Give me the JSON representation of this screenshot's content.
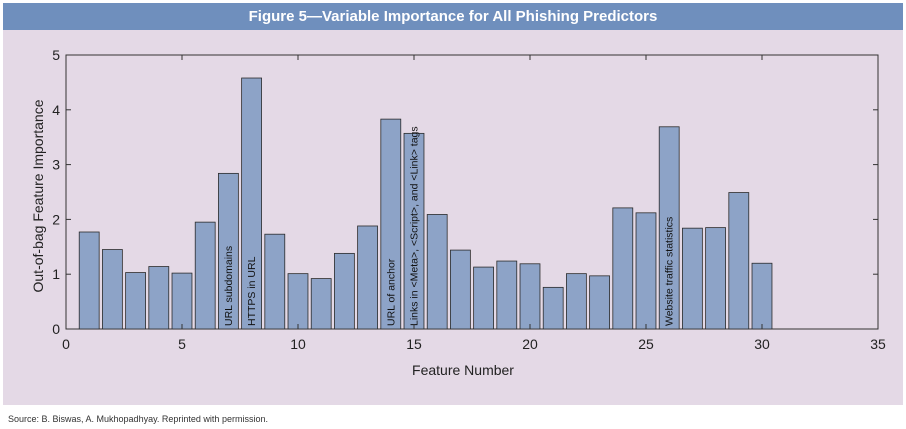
{
  "figure": {
    "title": "Figure 5—Variable Importance for All Phishing Predictors",
    "source": "Source:  B. Biswas, A. Mukhopadhyay. Reprinted with permission."
  },
  "colors": {
    "title_bar": "#6f8fbd",
    "plot_background": "#e4d9e6",
    "bar_fill": "#8da3c7",
    "bar_stroke": "#2b2b2b"
  },
  "chart_data": {
    "type": "bar",
    "title": "Figure 5—Variable Importance for All Phishing Predictors",
    "xlabel": "Feature Number",
    "ylabel": "Out-of-bag Feature Importance",
    "xlim": [
      0,
      35
    ],
    "ylim": [
      0,
      5
    ],
    "xticks": [
      0,
      5,
      10,
      15,
      20,
      25,
      30,
      35
    ],
    "yticks": [
      0,
      1,
      2,
      3,
      4,
      5
    ],
    "grid": false,
    "bars": [
      {
        "x": 1,
        "value": 1.77
      },
      {
        "x": 2,
        "value": 1.45
      },
      {
        "x": 3,
        "value": 1.03
      },
      {
        "x": 4,
        "value": 1.14
      },
      {
        "x": 5,
        "value": 1.02
      },
      {
        "x": 6,
        "value": 1.95
      },
      {
        "x": 7,
        "value": 2.84,
        "label": "URL subdomains"
      },
      {
        "x": 8,
        "value": 4.58,
        "label": "HTTPS in URL"
      },
      {
        "x": 9,
        "value": 1.73
      },
      {
        "x": 10,
        "value": 1.01
      },
      {
        "x": 11,
        "value": 0.92
      },
      {
        "x": 12,
        "value": 1.38
      },
      {
        "x": 13,
        "value": 1.88
      },
      {
        "x": 14,
        "value": 3.83,
        "label": "URL of anchor"
      },
      {
        "x": 15,
        "value": 3.57,
        "label": "Links in <Meta>, <Script>, and <Link> tags"
      },
      {
        "x": 16,
        "value": 2.09
      },
      {
        "x": 17,
        "value": 1.44
      },
      {
        "x": 18,
        "value": 1.13
      },
      {
        "x": 19,
        "value": 1.24
      },
      {
        "x": 20,
        "value": 1.19
      },
      {
        "x": 21,
        "value": 0.76
      },
      {
        "x": 22,
        "value": 1.01
      },
      {
        "x": 23,
        "value": 0.97
      },
      {
        "x": 24,
        "value": 2.21
      },
      {
        "x": 25,
        "value": 2.12
      },
      {
        "x": 26,
        "value": 3.69,
        "label": "Website traffic statistics"
      },
      {
        "x": 27,
        "value": 1.84
      },
      {
        "x": 28,
        "value": 1.85
      },
      {
        "x": 29,
        "value": 2.49
      },
      {
        "x": 30,
        "value": 1.2
      }
    ]
  }
}
